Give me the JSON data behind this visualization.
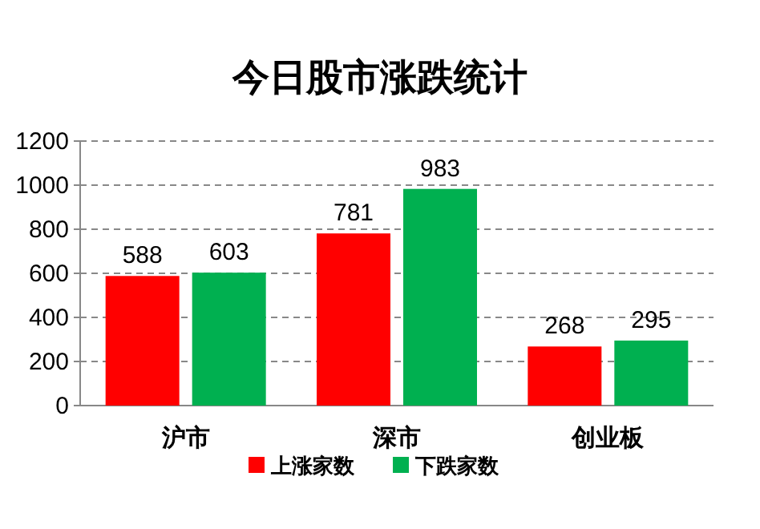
{
  "chart_data": {
    "type": "bar",
    "title": "今日股市涨跌统计",
    "categories": [
      "沪市",
      "深市",
      "创业板"
    ],
    "series": [
      {
        "name": "上涨家数",
        "color": "#ff0000",
        "values": [
          588,
          781,
          268
        ]
      },
      {
        "name": "下跌家数",
        "color": "#00b050",
        "values": [
          603,
          983,
          295
        ]
      }
    ],
    "ylim": [
      0,
      1200
    ],
    "yticks": [
      0,
      200,
      400,
      600,
      800,
      1000,
      1200
    ],
    "grid": "y",
    "legend": "bottom",
    "data_labels": true
  }
}
